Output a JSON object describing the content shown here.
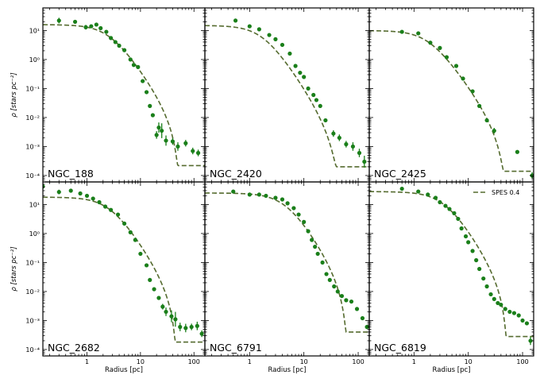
{
  "chart_data": {
    "type": "scatter",
    "layout": "2x3 grid, shared log axes",
    "xlabel": "Radius [pc]",
    "ylabel": "ρ [stars pc⁻²]",
    "xscale": "log",
    "yscale": "log",
    "xlim": [
      0.15,
      160
    ],
    "ylim": [
      6e-05,
      60
    ],
    "x_ticks": [
      1,
      10,
      100
    ],
    "y_ticks": [
      0.0001,
      0.001,
      0.01,
      0.1,
      1,
      10
    ],
    "y_tick_labels": [
      "10⁻⁴",
      "10⁻³",
      "10⁻²",
      "10⁻¹",
      "10⁰",
      "10¹"
    ],
    "x_tick_labels": [
      "1",
      "10",
      "100"
    ],
    "legend": {
      "label": "SPES 0.4",
      "placement": "top-right of NGC_6819 panel"
    },
    "colors": {
      "data": "#1a7f1a",
      "model": "#556b2f"
    },
    "panels": [
      {
        "name": "NGC_188",
        "model": {
          "rho0": 16,
          "rc": 2.5,
          "rt": 50,
          "p": 2.4,
          "floor": 0.00022
        },
        "points": [
          [
            0.3,
            22,
            1.25
          ],
          [
            0.6,
            20,
            1.1
          ],
          [
            0.95,
            13,
            1.2
          ],
          [
            1.2,
            14,
            1.15
          ],
          [
            1.5,
            16,
            1.1
          ],
          [
            1.8,
            12,
            1.1
          ],
          [
            2.3,
            9,
            1.1
          ],
          [
            2.8,
            5.5,
            1.1
          ],
          [
            3.4,
            4,
            1.1
          ],
          [
            4.0,
            3,
            1.1
          ],
          [
            5.0,
            2.1,
            1.1
          ],
          [
            6.5,
            1.0,
            1.1
          ],
          [
            7.5,
            0.65,
            1.1
          ],
          [
            9.0,
            0.55,
            1.1
          ],
          [
            11,
            0.18,
            1.1
          ],
          [
            13,
            0.075,
            1.1
          ],
          [
            15,
            0.025,
            1.1
          ],
          [
            17,
            0.012,
            1.15
          ],
          [
            20,
            0.0025,
            1.35
          ],
          [
            22,
            0.0045,
            1.5
          ],
          [
            25,
            0.0035,
            1.8
          ],
          [
            30,
            0.0016,
            1.5
          ],
          [
            40,
            0.0015,
            1.3
          ],
          [
            50,
            0.001,
            1.4
          ],
          [
            70,
            0.0013,
            1.3
          ],
          [
            95,
            0.0007,
            1.3
          ],
          [
            120,
            0.0006,
            1.3
          ]
        ]
      },
      {
        "name": "NGC_2420",
        "model": {
          "rho0": 15,
          "rc": 1.7,
          "rt": 40,
          "p": 2.6,
          "floor": 0.0002
        },
        "points": [
          [
            0.55,
            22,
            1.1
          ],
          [
            1.0,
            14,
            1.1
          ],
          [
            1.5,
            11,
            1.1
          ],
          [
            2.3,
            7,
            1.1
          ],
          [
            3.0,
            5,
            1.1
          ],
          [
            4.0,
            3.2,
            1.1
          ],
          [
            5.5,
            1.6,
            1.1
          ],
          [
            7.0,
            0.6,
            1.1
          ],
          [
            8.5,
            0.35,
            1.1
          ],
          [
            10,
            0.25,
            1.1
          ],
          [
            12,
            0.1,
            1.1
          ],
          [
            15,
            0.06,
            1.1
          ],
          [
            17,
            0.04,
            1.1
          ],
          [
            20,
            0.025,
            1.1
          ],
          [
            25,
            0.008,
            1.15
          ],
          [
            35,
            0.0028,
            1.3
          ],
          [
            45,
            0.002,
            1.3
          ],
          [
            60,
            0.0012,
            1.3
          ],
          [
            80,
            0.001,
            1.4
          ],
          [
            105,
            0.0006,
            1.4
          ],
          [
            130,
            0.0003,
            1.6
          ]
        ]
      },
      {
        "name": "NGC_2425",
        "model": {
          "rho0": 10,
          "rc": 1.8,
          "rt": 45,
          "p": 2.4,
          "floor": 0.00014
        },
        "points": [
          [
            0.6,
            9,
            1.1
          ],
          [
            1.2,
            8,
            1.1
          ],
          [
            2.0,
            3.8,
            1.1
          ],
          [
            3.0,
            2.5,
            1.1
          ],
          [
            4.0,
            1.2,
            1.1
          ],
          [
            6.0,
            0.6,
            1.1
          ],
          [
            8.0,
            0.22,
            1.1
          ],
          [
            12,
            0.08,
            1.1
          ],
          [
            16,
            0.025,
            1.1
          ],
          [
            22,
            0.008,
            1.1
          ],
          [
            30,
            0.0035,
            1.25
          ],
          [
            80,
            0.00065,
            1.1
          ],
          [
            150,
            0.0001,
            1.3
          ]
        ]
      },
      {
        "name": "NGC_2682",
        "model": {
          "rho0": 18,
          "rc": 2.6,
          "rt": 45,
          "p": 2.5,
          "floor": 0.00018
        },
        "points": [
          [
            0.15,
            42,
            1.25
          ],
          [
            0.3,
            27,
            1.2
          ],
          [
            0.5,
            30,
            1.1
          ],
          [
            0.75,
            24,
            1.1
          ],
          [
            1.0,
            20,
            1.1
          ],
          [
            1.3,
            16,
            1.1
          ],
          [
            1.7,
            12,
            1.1
          ],
          [
            2.2,
            8.5,
            1.1
          ],
          [
            2.8,
            6.5,
            1.1
          ],
          [
            3.8,
            4.5,
            1.1
          ],
          [
            5.0,
            2.2,
            1.1
          ],
          [
            6.5,
            1.1,
            1.1
          ],
          [
            8.0,
            0.6,
            1.1
          ],
          [
            10,
            0.2,
            1.1
          ],
          [
            13,
            0.08,
            1.1
          ],
          [
            15,
            0.025,
            1.1
          ],
          [
            18,
            0.012,
            1.1
          ],
          [
            22,
            0.006,
            1.15
          ],
          [
            26,
            0.003,
            1.25
          ],
          [
            30,
            0.002,
            1.4
          ],
          [
            38,
            0.0014,
            1.6
          ],
          [
            45,
            0.0011,
            1.8
          ],
          [
            55,
            0.0006,
            1.4
          ],
          [
            70,
            0.00055,
            1.4
          ],
          [
            90,
            0.0006,
            1.3
          ],
          [
            115,
            0.00065,
            1.4
          ],
          [
            140,
            0.00035,
            1.3
          ]
        ]
      },
      {
        "name": "NGC_6791",
        "model": {
          "rho0": 25,
          "rc": 4.5,
          "rt": 60,
          "p": 2.6,
          "floor": 0.0004
        },
        "points": [
          [
            0.5,
            28,
            1.1
          ],
          [
            1.0,
            22,
            1.1
          ],
          [
            1.5,
            22,
            1.1
          ],
          [
            2.0,
            20,
            1.1
          ],
          [
            3.0,
            17,
            1.1
          ],
          [
            4.0,
            15,
            1.1
          ],
          [
            5.0,
            11,
            1.1
          ],
          [
            6.5,
            7.5,
            1.1
          ],
          [
            8.0,
            4.5,
            1.1
          ],
          [
            10,
            2.5,
            1.1
          ],
          [
            12,
            1.2,
            1.1
          ],
          [
            14,
            0.6,
            1.1
          ],
          [
            16,
            0.35,
            1.1
          ],
          [
            18,
            0.2,
            1.1
          ],
          [
            22,
            0.1,
            1.1
          ],
          [
            26,
            0.04,
            1.1
          ],
          [
            30,
            0.025,
            1.1
          ],
          [
            36,
            0.015,
            1.1
          ],
          [
            42,
            0.01,
            1.1
          ],
          [
            50,
            0.007,
            1.1
          ],
          [
            60,
            0.005,
            1.1
          ],
          [
            75,
            0.0045,
            1.1
          ],
          [
            95,
            0.0025,
            1.1
          ],
          [
            120,
            0.0012,
            1.1
          ],
          [
            145,
            0.0006,
            1.1
          ]
        ]
      },
      {
        "name": "NGC_6819",
        "model": {
          "rho0": 28,
          "rc": 3.5,
          "rt": 50,
          "p": 2.6,
          "floor": 0.00028
        },
        "points": [
          [
            0.6,
            35,
            1.1
          ],
          [
            1.2,
            28,
            1.1
          ],
          [
            1.8,
            22,
            1.1
          ],
          [
            2.5,
            17,
            1.1
          ],
          [
            3.0,
            12,
            1.1
          ],
          [
            3.8,
            9,
            1.1
          ],
          [
            4.5,
            7,
            1.1
          ],
          [
            5.5,
            5,
            1.1
          ],
          [
            6.5,
            3.2,
            1.1
          ],
          [
            7.5,
            1.5,
            1.1
          ],
          [
            9.0,
            0.8,
            1.1
          ],
          [
            10,
            0.5,
            1.1
          ],
          [
            12,
            0.25,
            1.1
          ],
          [
            14,
            0.12,
            1.1
          ],
          [
            16,
            0.06,
            1.1
          ],
          [
            19,
            0.028,
            1.1
          ],
          [
            22,
            0.015,
            1.1
          ],
          [
            26,
            0.008,
            1.1
          ],
          [
            30,
            0.0055,
            1.1
          ],
          [
            35,
            0.004,
            1.1
          ],
          [
            40,
            0.0035,
            1.1
          ],
          [
            48,
            0.0025,
            1.1
          ],
          [
            58,
            0.002,
            1.1
          ],
          [
            70,
            0.0018,
            1.1
          ],
          [
            85,
            0.0015,
            1.1
          ],
          [
            100,
            0.001,
            1.1
          ],
          [
            120,
            0.0008,
            1.1
          ],
          [
            140,
            0.0002,
            1.4
          ]
        ]
      }
    ]
  }
}
